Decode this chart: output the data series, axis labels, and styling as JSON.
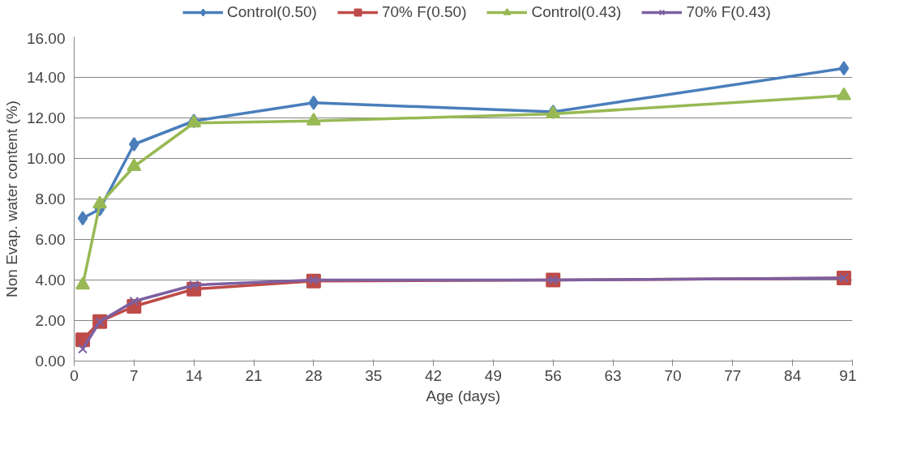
{
  "chart_data": {
    "type": "line",
    "xlabel": "Age (days)",
    "ylabel": "Non Evap. water content (%)",
    "xlim": [
      0,
      91
    ],
    "xticks": [
      0,
      7,
      14,
      21,
      28,
      35,
      42,
      49,
      56,
      63,
      70,
      77,
      84,
      91
    ],
    "ylim": [
      0,
      16
    ],
    "yticks": [
      {
        "value": 0,
        "label": "0.00"
      },
      {
        "value": 2,
        "label": "2.00"
      },
      {
        "value": 4,
        "label": "4.00"
      },
      {
        "value": 6,
        "label": "6.00"
      },
      {
        "value": 8,
        "label": "8.00"
      },
      {
        "value": 10,
        "label": "10.00"
      },
      {
        "value": 12,
        "label": "12.00"
      },
      {
        "value": 14,
        "label": "14.00"
      },
      {
        "value": 16,
        "label": "16.00"
      }
    ],
    "grid": "y",
    "legend": "top",
    "line_style": "solid",
    "x": [
      1,
      3,
      7,
      14,
      28,
      56,
      90
    ],
    "series": [
      {
        "name": "Control(0.50)",
        "color": "#4a7ebb",
        "marker": "diamond",
        "values": [
          7.05,
          7.5,
          10.7,
          11.85,
          12.75,
          12.3,
          14.45
        ]
      },
      {
        "name": "70% F(0.50)",
        "color": "#be4b48",
        "marker": "square",
        "values": [
          1.05,
          1.95,
          2.7,
          3.55,
          3.95,
          4.0,
          4.1
        ]
      },
      {
        "name": "Control(0.43)",
        "color": "#98b954",
        "marker": "triangle",
        "values": [
          3.75,
          7.75,
          9.6,
          11.75,
          11.85,
          12.2,
          13.1
        ]
      },
      {
        "name": "70% F(0.43)",
        "color": "#7d60a0",
        "marker": "cross",
        "values": [
          0.6,
          1.95,
          2.95,
          3.75,
          4.0,
          4.0,
          4.1
        ]
      }
    ]
  }
}
